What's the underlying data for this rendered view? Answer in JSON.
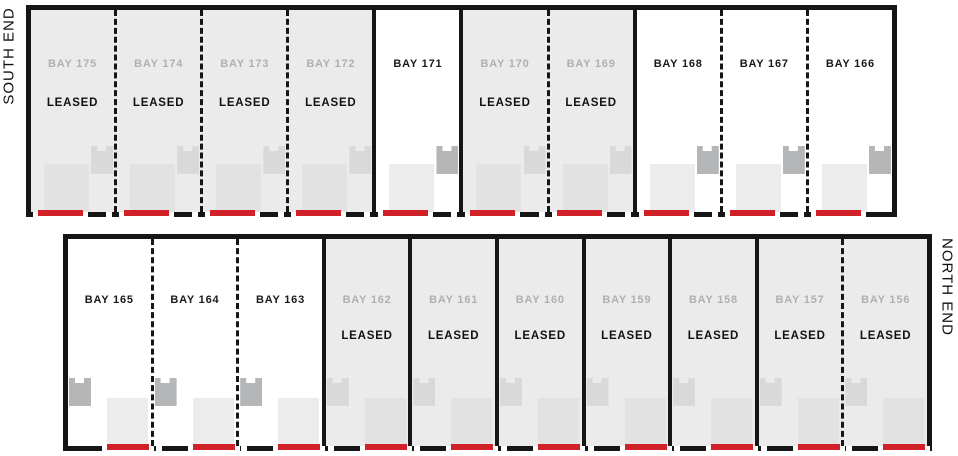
{
  "legend": {
    "south_end_label": "SOUTH END",
    "north_end_label": "NORTH END"
  },
  "colors": {
    "wall": "#161616",
    "leased_bay_fill": "#ebebeb",
    "available_bay_fill": "#ffffff",
    "leased_label_text": "#b0b0b0",
    "available_label_text": "#1a1a1a",
    "status_text": "#111111",
    "door_marker_red": "#d02028",
    "fixture_dark": "#b4b6b8",
    "fixture_light": "#d9d9d9"
  },
  "rows": {
    "south": {
      "end_label": "SOUTH END",
      "bays": [
        {
          "label": "BAY 175",
          "leased": true,
          "status": "LEASED"
        },
        {
          "label": "BAY 174",
          "leased": true,
          "status": "LEASED"
        },
        {
          "label": "BAY 173",
          "leased": true,
          "status": "LEASED"
        },
        {
          "label": "BAY 172",
          "leased": true,
          "status": "LEASED"
        },
        {
          "label": "BAY 171",
          "leased": false
        },
        {
          "label": "BAY 170",
          "leased": true,
          "status": "LEASED"
        },
        {
          "label": "BAY 169",
          "leased": true,
          "status": "LEASED"
        },
        {
          "label": "BAY 168",
          "leased": false
        },
        {
          "label": "BAY 167",
          "leased": false
        },
        {
          "label": "BAY 166",
          "leased": false
        }
      ]
    },
    "north": {
      "end_label": "NORTH END",
      "bays": [
        {
          "label": "BAY 165",
          "leased": false
        },
        {
          "label": "BAY 164",
          "leased": false
        },
        {
          "label": "BAY 163",
          "leased": false
        },
        {
          "label": "BAY 162",
          "leased": true,
          "status": "LEASED"
        },
        {
          "label": "BAY 161",
          "leased": true,
          "status": "LEASED"
        },
        {
          "label": "BAY 160",
          "leased": true,
          "status": "LEASED"
        },
        {
          "label": "BAY 159",
          "leased": true,
          "status": "LEASED"
        },
        {
          "label": "BAY 158",
          "leased": true,
          "status": "LEASED"
        },
        {
          "label": "BAY 157",
          "leased": true,
          "status": "LEASED"
        },
        {
          "label": "BAY 156",
          "leased": true,
          "status": "LEASED"
        }
      ]
    }
  }
}
